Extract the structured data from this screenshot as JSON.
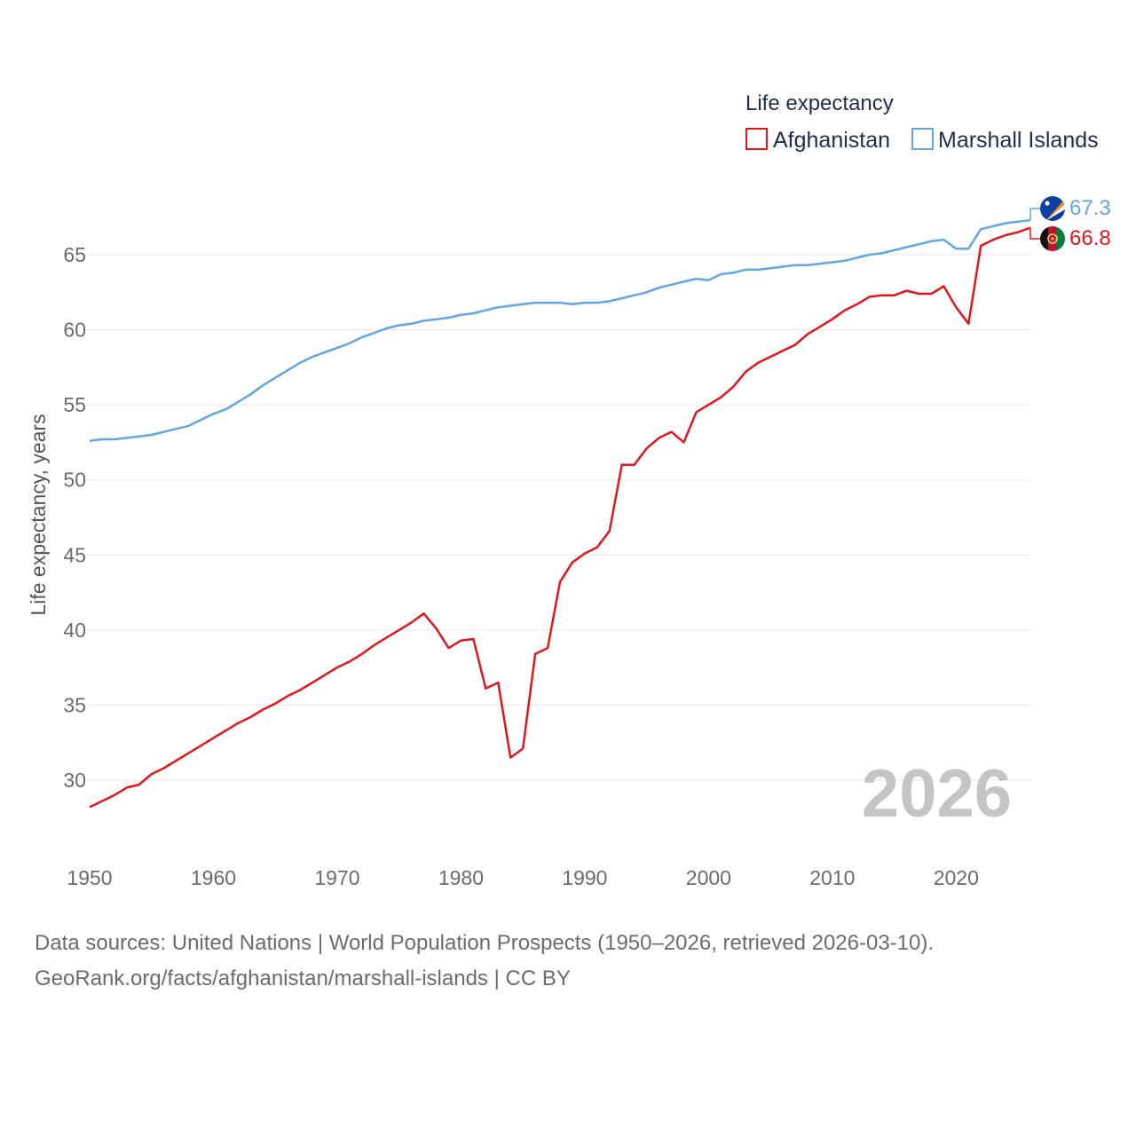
{
  "legend": {
    "title": "Life expectancy",
    "items": [
      {
        "label": "Afghanistan",
        "color": "#e0161b"
      },
      {
        "label": "Marshall Islands",
        "color": "#62a5e3"
      }
    ]
  },
  "current_year": "2026",
  "end_labels": {
    "marshall_islands": "67.3",
    "afghanistan": "66.8"
  },
  "footer": {
    "line1": "Data sources: United Nations | World Population Prospects (1950–2026, retrieved 2026-03-10).",
    "line2": "GeoRank.org/facts/afghanistan/marshall-islands | CC BY"
  },
  "chart_data": {
    "type": "line",
    "title": "Life expectancy",
    "xlabel": "",
    "ylabel": "Life expectancy, years",
    "xlim": [
      1950,
      2026
    ],
    "ylim": [
      26.5,
      69
    ],
    "xticks": [
      1950,
      1960,
      1970,
      1980,
      1990,
      2000,
      2010,
      2020
    ],
    "yticks": [
      30,
      35,
      40,
      45,
      50,
      55,
      60,
      65
    ],
    "grid": true,
    "legend_position": "top-right",
    "x": [
      1950,
      1951,
      1952,
      1953,
      1954,
      1955,
      1956,
      1957,
      1958,
      1959,
      1960,
      1961,
      1962,
      1963,
      1964,
      1965,
      1966,
      1967,
      1968,
      1969,
      1970,
      1971,
      1972,
      1973,
      1974,
      1975,
      1976,
      1977,
      1978,
      1979,
      1980,
      1981,
      1982,
      1983,
      1984,
      1985,
      1986,
      1987,
      1988,
      1989,
      1990,
      1991,
      1992,
      1993,
      1994,
      1995,
      1996,
      1997,
      1998,
      1999,
      2000,
      2001,
      2002,
      2003,
      2004,
      2005,
      2006,
      2007,
      2008,
      2009,
      2010,
      2011,
      2012,
      2013,
      2014,
      2015,
      2016,
      2017,
      2018,
      2019,
      2020,
      2021,
      2022,
      2023,
      2024,
      2025,
      2026
    ],
    "series": [
      {
        "name": "Afghanistan",
        "color": "#e0161b",
        "values": [
          28.2,
          28.6,
          29.0,
          29.5,
          29.7,
          30.4,
          30.8,
          31.3,
          31.8,
          32.3,
          32.8,
          33.3,
          33.8,
          34.2,
          34.7,
          35.1,
          35.6,
          36.0,
          36.5,
          37.0,
          37.5,
          37.9,
          38.4,
          39.0,
          39.5,
          40.0,
          40.5,
          41.1,
          40.1,
          38.8,
          39.3,
          39.4,
          36.1,
          36.5,
          31.5,
          32.1,
          38.4,
          38.8,
          43.2,
          44.5,
          45.1,
          45.5,
          46.6,
          51.0,
          51.0,
          52.1,
          52.8,
          53.2,
          52.5,
          54.5,
          55.0,
          55.5,
          56.2,
          57.2,
          57.8,
          58.2,
          58.6,
          59.0,
          59.7,
          60.2,
          60.7,
          61.3,
          61.7,
          62.2,
          62.3,
          62.3,
          62.6,
          62.4,
          62.4,
          62.9,
          61.5,
          60.4,
          65.6,
          66.0,
          66.3,
          66.5,
          66.8
        ]
      },
      {
        "name": "Marshall Islands",
        "color": "#62a5e3",
        "values": [
          52.6,
          52.7,
          52.7,
          52.8,
          52.9,
          53.0,
          53.2,
          53.4,
          53.6,
          54.0,
          54.4,
          54.7,
          55.2,
          55.7,
          56.3,
          56.8,
          57.3,
          57.8,
          58.2,
          58.5,
          58.8,
          59.1,
          59.5,
          59.8,
          60.1,
          60.3,
          60.4,
          60.6,
          60.7,
          60.8,
          61.0,
          61.1,
          61.3,
          61.5,
          61.6,
          61.7,
          61.8,
          61.8,
          61.8,
          61.7,
          61.8,
          61.8,
          61.9,
          62.1,
          62.3,
          62.5,
          62.8,
          63.0,
          63.2,
          63.4,
          63.3,
          63.7,
          63.8,
          64.0,
          64.0,
          64.1,
          64.2,
          64.3,
          64.3,
          64.4,
          64.5,
          64.6,
          64.8,
          65.0,
          65.1,
          65.3,
          65.5,
          65.7,
          65.9,
          66.0,
          65.4,
          65.4,
          66.7,
          66.9,
          67.1,
          67.2,
          67.3
        ]
      }
    ]
  }
}
